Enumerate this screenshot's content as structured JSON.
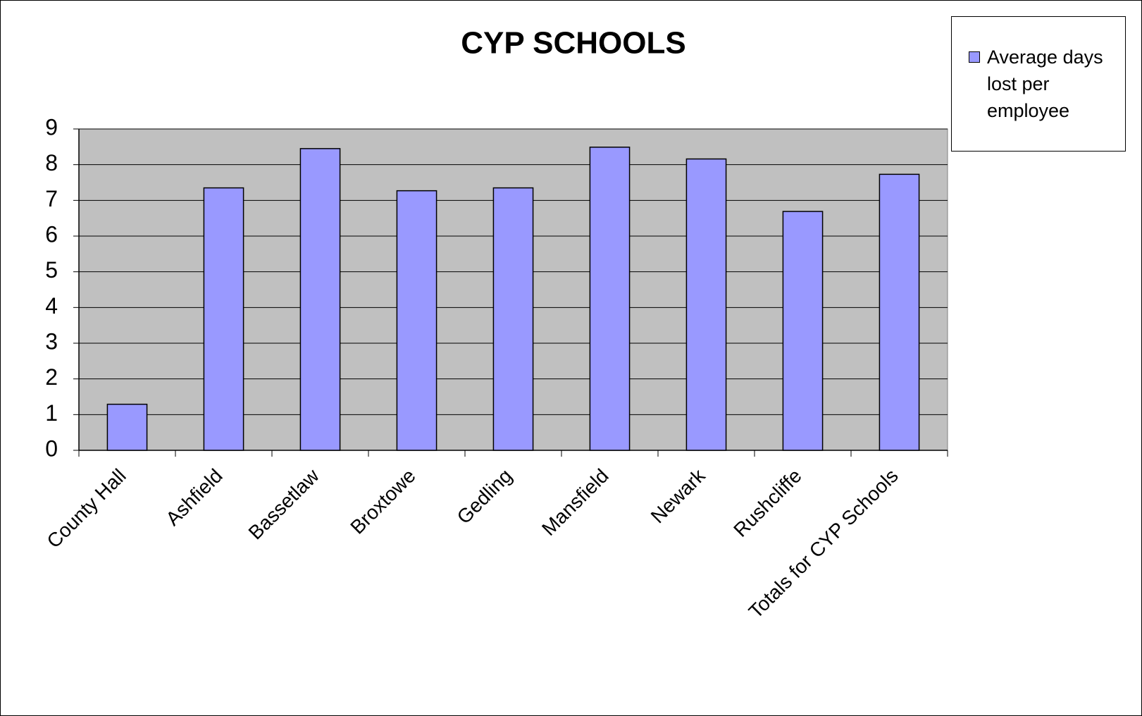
{
  "chart_data": {
    "type": "bar",
    "title": "CYP SCHOOLS",
    "categories": [
      "County Hall",
      "Ashfield",
      "Bassetlaw",
      "Broxtowe",
      "Gedling",
      "Mansfield",
      "Newark",
      "Rushcliffe",
      "Totals for CYP Schools"
    ],
    "series": [
      {
        "name": "Average days lost per employee",
        "color": "#9999ff",
        "values": [
          1.29,
          7.35,
          8.45,
          7.27,
          7.35,
          8.49,
          8.16,
          6.69,
          7.73
        ]
      }
    ],
    "ylim": [
      0,
      9
    ],
    "yticks": [
      0,
      1,
      2,
      3,
      4,
      5,
      6,
      7,
      8,
      9
    ],
    "grid": true,
    "plot_background": "#c0c0c0",
    "legend": "top-right"
  }
}
